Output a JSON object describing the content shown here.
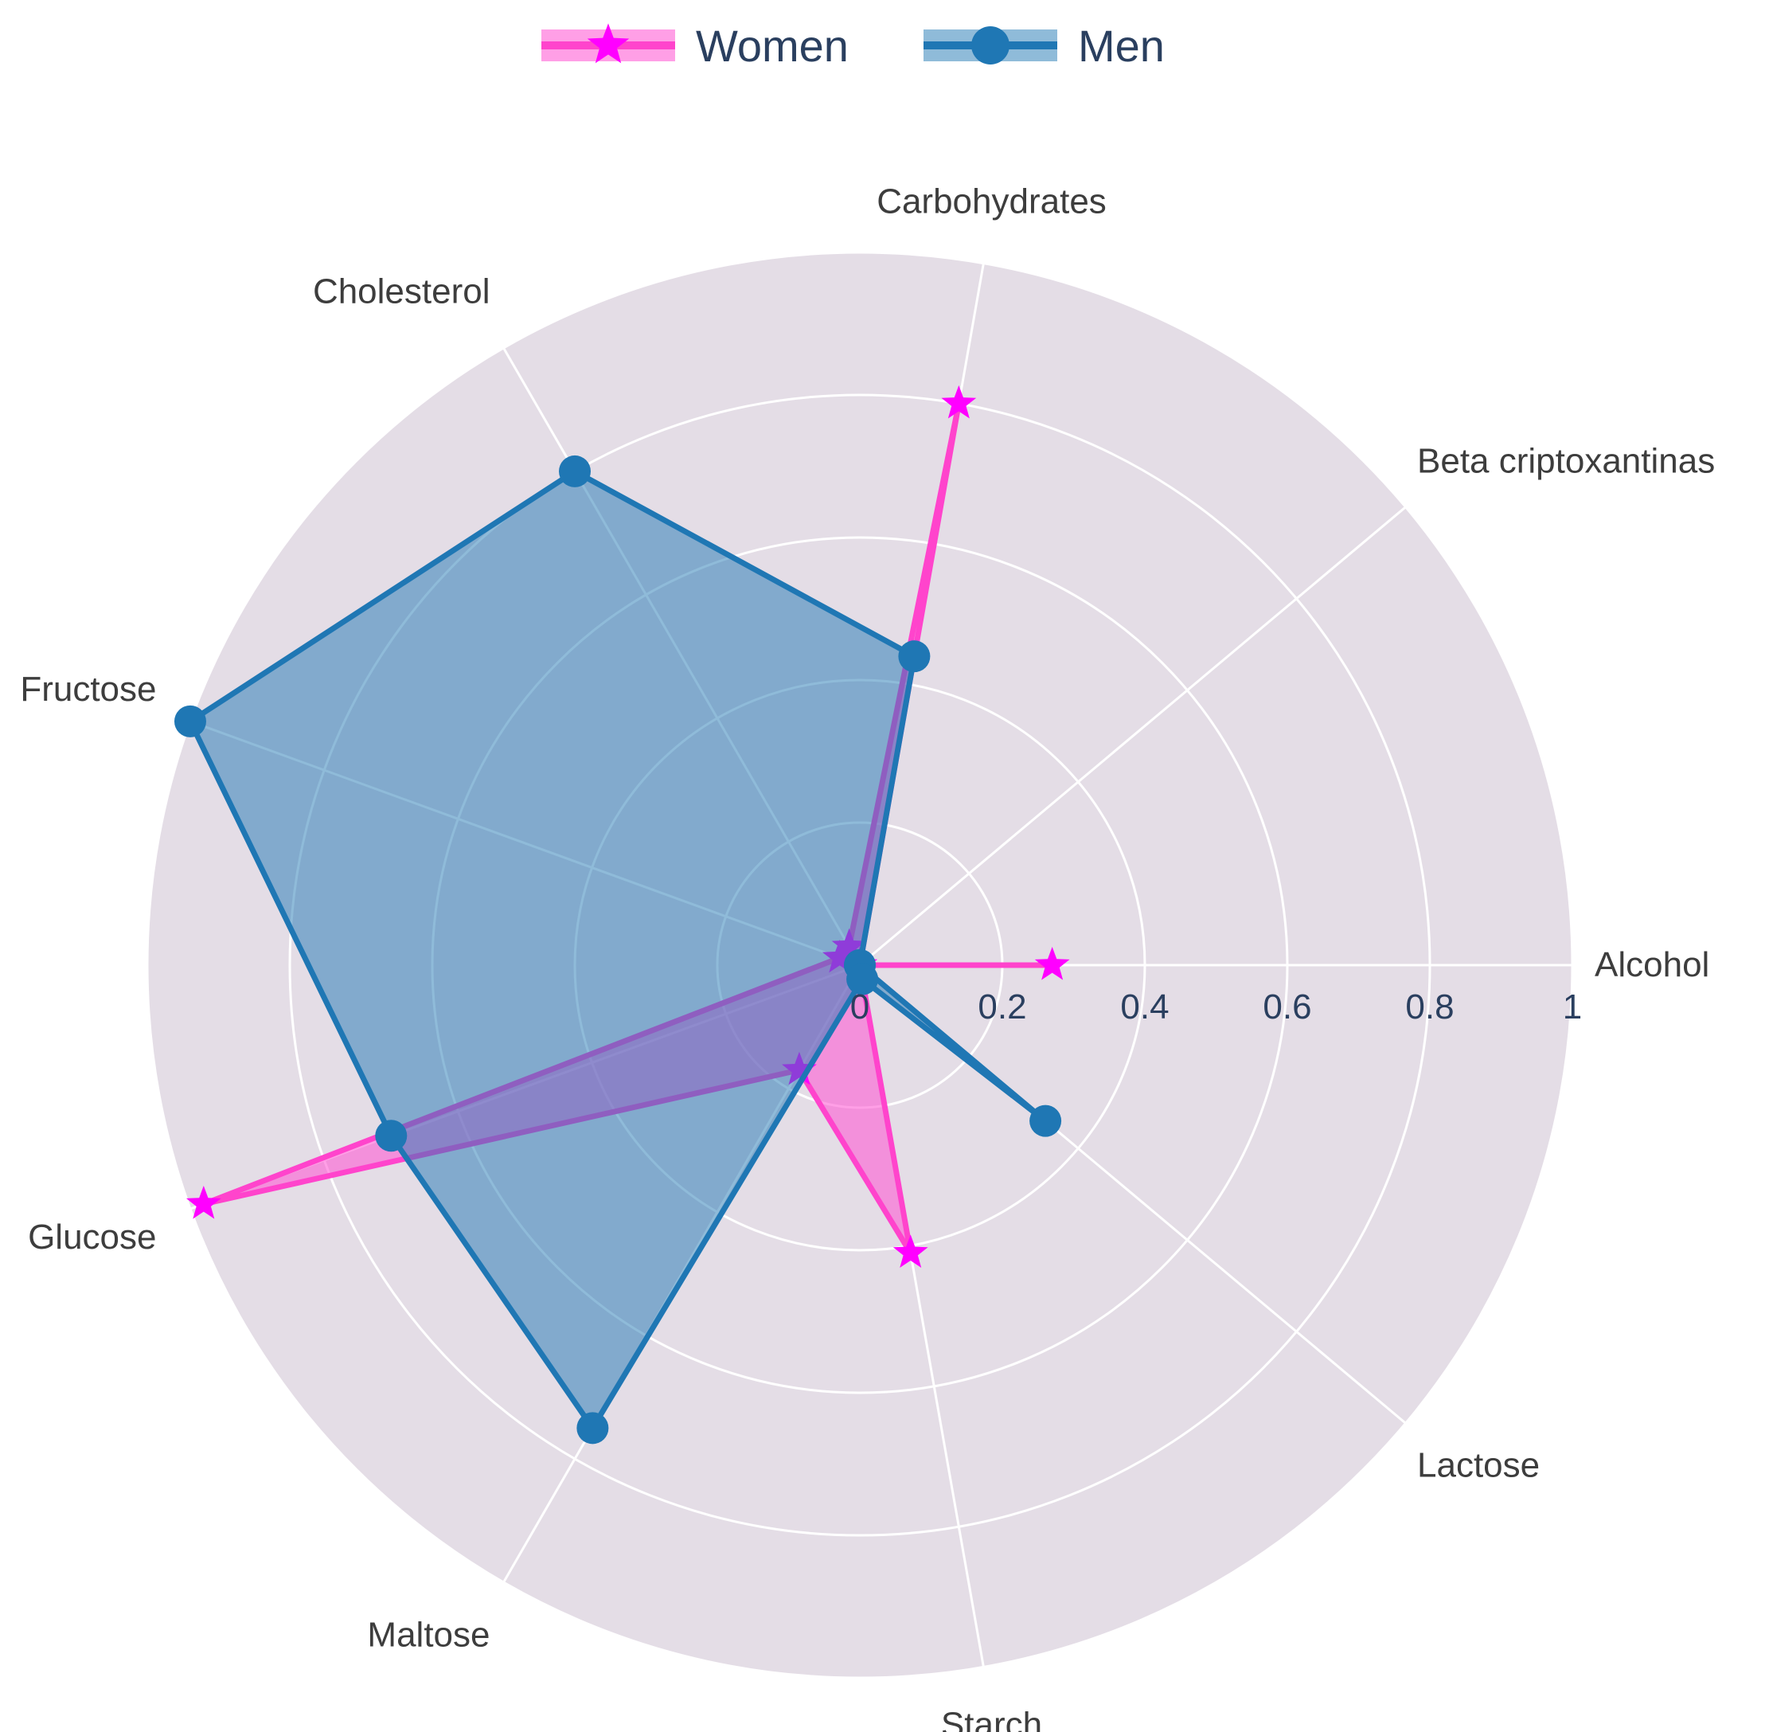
{
  "chart_data": {
    "type": "radar",
    "categories": [
      "Alcohol",
      "Beta criptoxantinas",
      "Carbohydrates",
      "Cholesterol",
      "Fructose",
      "Glucose",
      "Maltose",
      "Starch",
      "Lactose"
    ],
    "angles_deg": [
      0,
      40,
      80,
      120,
      160,
      200,
      240,
      280,
      320
    ],
    "radial_range": [
      0,
      1
    ],
    "radial_ticks": [
      0,
      0.2,
      0.4,
      0.6,
      0.8,
      1
    ],
    "radial_tick_labels": [
      "0",
      "0.2",
      "0.4",
      "0.6",
      "0.8",
      "1"
    ],
    "grid": true,
    "legend_position": "top-center",
    "series": [
      {
        "name": "Women",
        "values": [
          0.27,
          0,
          0.8,
          0.03,
          0.03,
          0.98,
          0.17,
          0.41,
          0
        ],
        "color": "#ff00ff",
        "line_color": "#ff44cc",
        "fill": "rgba(255, 80, 210, 0.55)",
        "marker": "star"
      },
      {
        "name": "Men",
        "values": [
          0,
          0,
          0.44,
          0.8,
          1.0,
          0.7,
          0.75,
          0.02,
          0.34
        ],
        "color": "#1f77b4",
        "line_color": "#1f77b4",
        "fill": "rgba(31, 119, 180, 0.5)",
        "marker": "circle"
      }
    ],
    "colors": {
      "plot_bg": "#e4dde6",
      "grid": "#ffffff"
    }
  }
}
